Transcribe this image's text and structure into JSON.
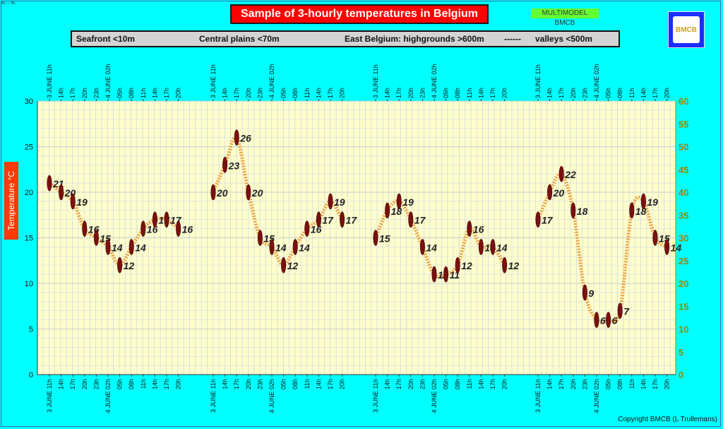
{
  "corner_text": "Bs — Bs",
  "title": "Sample of 3-hourly temperatures in Belgium",
  "tag": "MULTIMODEL BMCB",
  "logo_text": "BMCB",
  "legend": {
    "seafront": "Seafront <10m",
    "central": "Central plains <70m",
    "east": "East Belgium: highgrounds >600m",
    "dashes": "------",
    "valleys": "valleys <500m"
  },
  "y_axis_label": "Temperature   °C",
  "copyright": "Copyright BMCB (L Trullemans)",
  "colors": {
    "plot_bg": "#ffffcc",
    "line": "#f0a040",
    "marker": "#7a1010",
    "page_bg": "#00ffff",
    "right_axis": "#8c8c00"
  },
  "chart_data": {
    "type": "line",
    "title": "Sample of 3-hourly temperatures in Belgium",
    "ylabel": "Temperature   °C",
    "ylim": [
      0,
      30
    ],
    "y_ticks": [
      0,
      5,
      10,
      15,
      20,
      25,
      30
    ],
    "y2lim": [
      0,
      60
    ],
    "y2_ticks": [
      0,
      5,
      10,
      15,
      20,
      25,
      30,
      35,
      40,
      45,
      50,
      55,
      60
    ],
    "grid": true,
    "time_labels": [
      "3 JUNE 11h",
      "14h",
      "17h",
      "20h",
      "23h",
      "4 JUNE 02h",
      "05h",
      "08h",
      "11h",
      "14h",
      "17h",
      "20h"
    ],
    "series": [
      {
        "name": "Seafront <10m",
        "values": [
          21,
          20,
          19,
          16,
          15,
          14,
          12,
          14,
          16,
          17,
          17,
          16
        ]
      },
      {
        "name": "Central plains <70m",
        "values": [
          20,
          23,
          26,
          20,
          15,
          14,
          12,
          14,
          16,
          17,
          19,
          17
        ]
      },
      {
        "name": "East Belgium: highgrounds >600m",
        "values": [
          15,
          18,
          19,
          17,
          14,
          11,
          11,
          12,
          16,
          14,
          14,
          12
        ]
      },
      {
        "name": "valleys <500m",
        "values": [
          17,
          20,
          22,
          18,
          9,
          6,
          6,
          7,
          18,
          19,
          15,
          14
        ]
      }
    ]
  }
}
